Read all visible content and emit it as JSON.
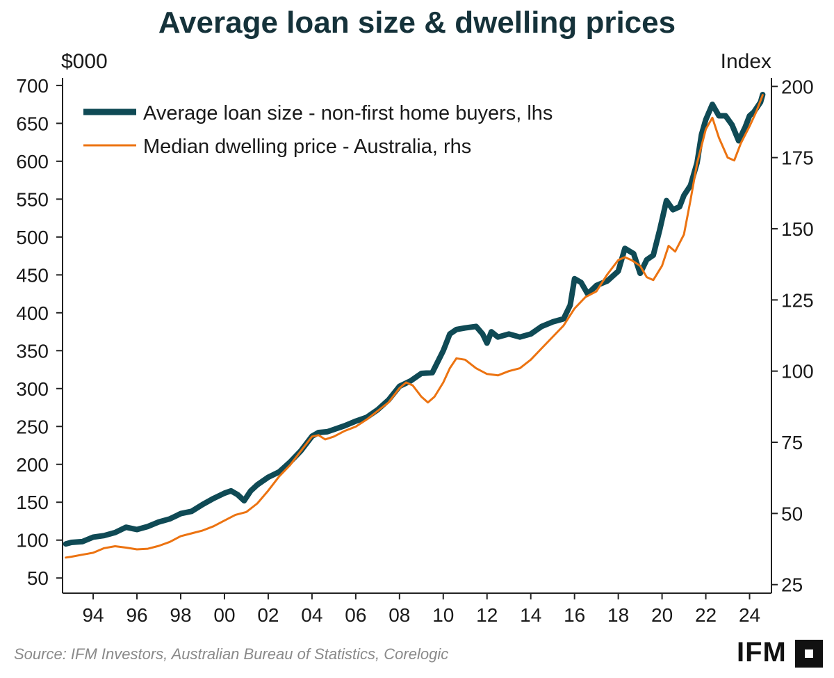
{
  "chart_data": {
    "type": "line",
    "title": "Average loan size & dwelling prices",
    "left_axis": {
      "unit": "$000",
      "ylim": [
        30,
        710
      ],
      "ticks": [
        50,
        100,
        150,
        200,
        250,
        300,
        350,
        400,
        450,
        500,
        550,
        600,
        650,
        700
      ],
      "tick_labels": [
        "50",
        "100",
        "150",
        "200",
        "250",
        "300",
        "350",
        "400",
        "450",
        "500",
        "550",
        "600",
        "650",
        "700"
      ]
    },
    "right_axis": {
      "unit": "Index",
      "ylim": [
        22,
        203
      ],
      "ticks": [
        25,
        50,
        75,
        100,
        125,
        150,
        175,
        200
      ],
      "tick_labels": [
        "25",
        "50",
        "75",
        "100",
        "125",
        "150",
        "175",
        "200"
      ]
    },
    "x_axis": {
      "xlim": [
        1992.6,
        2025.0
      ],
      "ticks": [
        1994,
        1996,
        1998,
        2000,
        2002,
        2004,
        2006,
        2008,
        2010,
        2012,
        2014,
        2016,
        2018,
        2020,
        2022,
        2024
      ],
      "tick_labels": [
        "94",
        "96",
        "98",
        "00",
        "02",
        "04",
        "06",
        "08",
        "10",
        "12",
        "14",
        "16",
        "18",
        "20",
        "22",
        "24"
      ]
    },
    "grid": false,
    "legend_position": "top-left",
    "series": [
      {
        "name": "Average loan size - non-first home buyers, lhs",
        "axis": "left",
        "color": "#0f4a55",
        "x": [
          1992.75,
          1993.0,
          1993.5,
          1994.0,
          1994.5,
          1995.0,
          1995.5,
          1996.0,
          1996.5,
          1997.0,
          1997.5,
          1998.0,
          1998.5,
          1999.0,
          1999.5,
          2000.0,
          2000.3,
          2000.6,
          2000.9,
          2001.2,
          2001.5,
          2002.0,
          2002.5,
          2003.0,
          2003.5,
          2004.0,
          2004.3,
          2004.7,
          2005.0,
          2005.5,
          2006.0,
          2006.5,
          2007.0,
          2007.5,
          2008.0,
          2008.5,
          2009.0,
          2009.5,
          2010.0,
          2010.3,
          2010.6,
          2011.0,
          2011.5,
          2011.8,
          2012.0,
          2012.2,
          2012.5,
          2013.0,
          2013.5,
          2014.0,
          2014.5,
          2015.0,
          2015.5,
          2015.8,
          2016.0,
          2016.3,
          2016.6,
          2017.0,
          2017.5,
          2018.0,
          2018.3,
          2018.7,
          2019.0,
          2019.3,
          2019.6,
          2019.9,
          2020.2,
          2020.5,
          2020.8,
          2021.0,
          2021.3,
          2021.6,
          2021.8,
          2022.0,
          2022.3,
          2022.6,
          2022.9,
          2023.2,
          2023.5,
          2023.8,
          2024.0,
          2024.2,
          2024.5,
          2024.6
        ],
        "y": [
          95,
          97,
          98,
          104,
          106,
          110,
          117,
          114,
          118,
          124,
          128,
          135,
          138,
          147,
          155,
          162,
          165,
          160,
          152,
          165,
          173,
          183,
          190,
          203,
          218,
          237,
          242,
          243,
          246,
          251,
          257,
          262,
          272,
          285,
          303,
          310,
          320,
          321,
          350,
          372,
          378,
          380,
          382,
          372,
          360,
          375,
          368,
          372,
          368,
          372,
          382,
          388,
          392,
          410,
          445,
          440,
          425,
          436,
          442,
          455,
          485,
          478,
          452,
          470,
          476,
          510,
          548,
          536,
          540,
          555,
          568,
          598,
          635,
          655,
          675,
          660,
          660,
          648,
          627,
          645,
          660,
          665,
          678,
          688
        ]
      },
      {
        "name": "Median dwelling price - Australia, rhs",
        "axis": "right",
        "color": "#ec7311",
        "x": [
          1992.75,
          1993.0,
          1993.5,
          1994.0,
          1994.5,
          1995.0,
          1995.5,
          1996.0,
          1996.5,
          1997.0,
          1997.5,
          1998.0,
          1998.5,
          1999.0,
          1999.5,
          2000.0,
          2000.5,
          2001.0,
          2001.5,
          2002.0,
          2002.5,
          2003.0,
          2003.5,
          2004.0,
          2004.3,
          2004.6,
          2005.0,
          2005.5,
          2006.0,
          2006.5,
          2007.0,
          2007.5,
          2008.0,
          2008.3,
          2008.6,
          2009.0,
          2009.3,
          2009.6,
          2010.0,
          2010.3,
          2010.6,
          2011.0,
          2011.5,
          2012.0,
          2012.5,
          2013.0,
          2013.5,
          2014.0,
          2014.5,
          2015.0,
          2015.5,
          2016.0,
          2016.5,
          2017.0,
          2017.5,
          2018.0,
          2018.3,
          2018.6,
          2019.0,
          2019.3,
          2019.6,
          2020.0,
          2020.3,
          2020.6,
          2021.0,
          2021.3,
          2021.6,
          2022.0,
          2022.3,
          2022.6,
          2023.0,
          2023.3,
          2023.6,
          2024.0,
          2024.3,
          2024.6
        ],
        "y": [
          34.5,
          34.8,
          35.5,
          36.2,
          37.8,
          38.5,
          38.0,
          37.4,
          37.6,
          38.6,
          40.0,
          42.0,
          43.0,
          44.0,
          45.5,
          47.5,
          49.5,
          50.5,
          53.5,
          58.0,
          63.0,
          67.0,
          72.0,
          77.0,
          77.5,
          76.0,
          77.0,
          79.0,
          80.5,
          83.0,
          86.0,
          89.0,
          94.0,
          96.0,
          95.0,
          91.0,
          89.0,
          91.0,
          96.0,
          101.0,
          104.5,
          104.0,
          101.0,
          99.0,
          98.5,
          100.0,
          101.0,
          104.0,
          108.0,
          112.0,
          116.0,
          122.0,
          126.0,
          128.0,
          134.0,
          139.0,
          140.0,
          139.0,
          137.0,
          133.0,
          132.0,
          137.0,
          144.0,
          142.0,
          148.0,
          160.0,
          173.0,
          185.0,
          189.0,
          182.0,
          175.0,
          174.0,
          180.0,
          186.0,
          191.0,
          197.0
        ]
      }
    ],
    "source": "Source: IFM Investors, Australian Bureau of Statistics, Corelogic",
    "logo_text": "IFM"
  }
}
